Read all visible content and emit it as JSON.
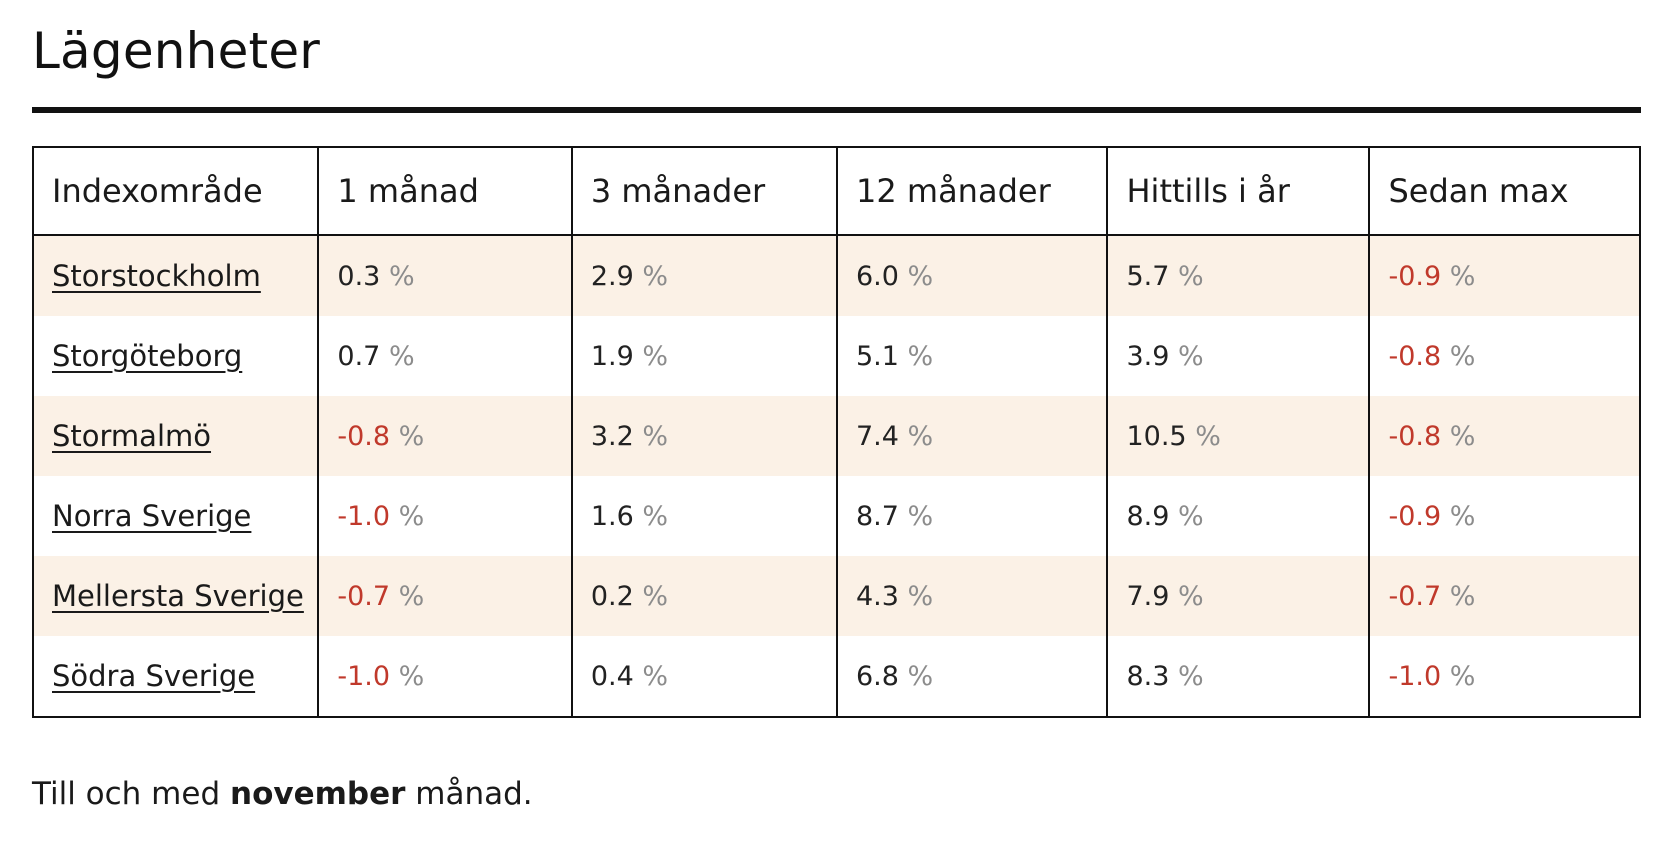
{
  "page": {
    "title": "Lägenheter"
  },
  "table": {
    "headers": [
      "Indexområde",
      "1 månad",
      "3 månader",
      "12 månader",
      "Hittills i år",
      "Sedan max"
    ],
    "rows": [
      {
        "region": "Storstockholm",
        "values": [
          "0.3",
          "2.9",
          "6.0",
          "5.7",
          "-0.9"
        ]
      },
      {
        "region": "Storgöteborg",
        "values": [
          "0.7",
          "1.9",
          "5.1",
          "3.9",
          "-0.8"
        ]
      },
      {
        "region": "Stormalmö",
        "values": [
          "-0.8",
          "3.2",
          "7.4",
          "10.5",
          "-0.8"
        ]
      },
      {
        "region": "Norra Sverige",
        "values": [
          "-1.0",
          "1.6",
          "8.7",
          "8.9",
          "-0.9"
        ]
      },
      {
        "region": "Mellersta Sverige",
        "values": [
          "-0.7",
          "0.2",
          "4.3",
          "7.9",
          "-0.7"
        ]
      },
      {
        "region": "Södra Sverige",
        "values": [
          "-1.0",
          "0.4",
          "6.8",
          "8.3",
          "-1.0"
        ]
      }
    ],
    "unit": "%"
  },
  "footnote": {
    "prefix": "Till och med ",
    "month": "november",
    "suffix": " månad."
  },
  "colors": {
    "negative": "#c0392b",
    "shaded_row": "#fbf1e6",
    "unit": "#8c8c8c"
  }
}
